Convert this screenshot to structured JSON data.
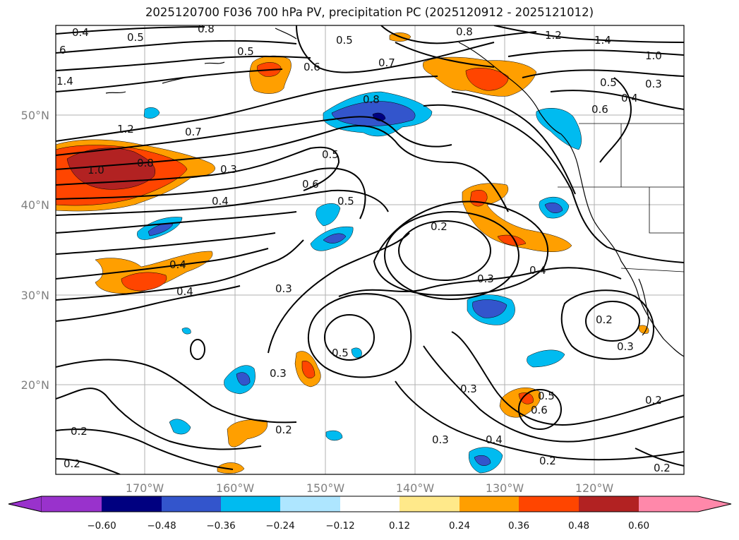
{
  "title": "2025120700 F036 700 hPa PV, precipitation PC (2025120912 - 2025121012)",
  "lat_ticks": [
    "50°N",
    "40°N",
    "30°N",
    "20°N"
  ],
  "lon_ticks": [
    "170°W",
    "160°W",
    "150°W",
    "140°W",
    "130°W",
    "120°W"
  ],
  "colorbar": {
    "ticks": [
      "−0.60",
      "−0.48",
      "−0.36",
      "−0.24",
      "−0.12",
      "0.12",
      "0.24",
      "0.36",
      "0.48",
      "0.60"
    ],
    "colors": [
      "#9932cc",
      "#000080",
      "#3355cc",
      "#00bbf0",
      "#aee6ff",
      "#ffffff",
      "#ffe98a",
      "#ff9f00",
      "#ff4500",
      "#b22222",
      "#ff88aa"
    ]
  },
  "contour_labels": [
    "0.4",
    "0.5",
    "0.8",
    "0.5",
    "0.5",
    "0.8",
    "1.2",
    "1.4",
    "1.0",
    "0.5",
    "0.4",
    "0.3",
    "0.6",
    "0.6",
    "0.7",
    "1.4",
    "1.2",
    "1.0",
    "0.8",
    "0.7",
    "0.3",
    "0.4",
    "0.6",
    "0.5",
    "0.5",
    "0.8",
    "0.2",
    "0.4",
    "0.4",
    "0.3",
    "0.3",
    "0.4",
    "0.5",
    "0.3",
    "0.2",
    "0.3",
    "0.3",
    "0.2",
    "0.5",
    "0.6",
    "0.4",
    "0.3",
    "0.2",
    "0.2",
    "0.2",
    "0.2",
    "0.2",
    "6"
  ]
}
